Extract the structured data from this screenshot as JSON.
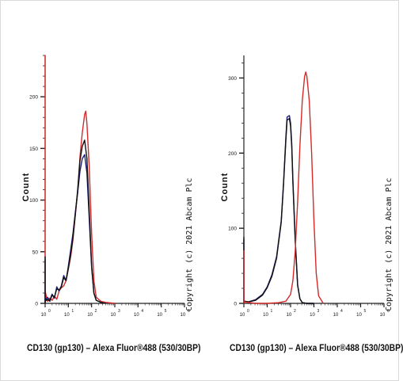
{
  "panels": [
    {
      "ylabel": "Count",
      "xlabel": "CD130 (gp130) – Alexa Fluor®488 (530/30BP)",
      "copyright": "Copyright (c) 2021 Abcam Plc",
      "x_ticks": [
        "0",
        "1",
        "2",
        "3",
        "4",
        "5",
        "6"
      ],
      "y_ticks": [
        0,
        50,
        100,
        150,
        200
      ],
      "chart_data": {
        "type": "line",
        "xlabel": "CD130 (gp130) – Alexa Fluor®488 (530/30BP)",
        "ylabel": "Count",
        "x_scale": "log10",
        "xlim": [
          0,
          6
        ],
        "ylim": [
          0,
          240
        ],
        "series": [
          {
            "color": "#d42a2a",
            "x": [
              -0.15,
              -0.1,
              -0.07,
              -0.05,
              0,
              0.1,
              0.2,
              0.3,
              0.4,
              0.5,
              0.6,
              0.7,
              0.8,
              0.9,
              1.0,
              1.1,
              1.2,
              1.3,
              1.4,
              1.5,
              1.6,
              1.7,
              1.75,
              1.8,
              1.9,
              2.0,
              2.1,
              2.2,
              2.4,
              2.6,
              3.0
            ],
            "y": [
              0,
              240,
              160,
              60,
              12,
              2,
              5,
              3,
              7,
              4,
              12,
              15,
              17,
              22,
              33,
              45,
              62,
              85,
              108,
              142,
              165,
              183,
              186,
              174,
              132,
              68,
              22,
              6,
              2,
              1,
              0
            ]
          },
          {
            "color": "#1c1c7a",
            "x": [
              -0.15,
              -0.1,
              -0.07,
              -0.05,
              0,
              0.1,
              0.2,
              0.3,
              0.4,
              0.5,
              0.6,
              0.7,
              0.8,
              0.9,
              1.0,
              1.1,
              1.2,
              1.3,
              1.4,
              1.5,
              1.6,
              1.7,
              1.8,
              1.9,
              2.0,
              2.1,
              2.2,
              2.4,
              2.6
            ],
            "y": [
              0,
              42,
              18,
              6,
              3,
              6,
              3,
              9,
              5,
              16,
              12,
              17,
              27,
              22,
              36,
              52,
              68,
              88,
              107,
              128,
              140,
              144,
              126,
              82,
              35,
              10,
              3,
              1,
              0
            ]
          },
          {
            "color": "#111111",
            "x": [
              -0.15,
              -0.1,
              -0.07,
              -0.05,
              0,
              0.1,
              0.2,
              0.3,
              0.4,
              0.5,
              0.6,
              0.7,
              0.8,
              0.9,
              1.0,
              1.1,
              1.2,
              1.3,
              1.4,
              1.5,
              1.6,
              1.7,
              1.8,
              1.9,
              2.0,
              2.1,
              2.2,
              2.4,
              2.6
            ],
            "y": [
              0,
              45,
              15,
              5,
              2,
              4,
              2,
              8,
              6,
              14,
              13,
              16,
              25,
              22,
              34,
              48,
              64,
              86,
              110,
              138,
              152,
              158,
              140,
              90,
              36,
              10,
              3,
              1,
              0
            ]
          }
        ]
      }
    },
    {
      "ylabel": "Count",
      "xlabel": "CD130 (gp130) – Alexa Fluor®488 (530/30BP)",
      "copyright": "Copyright (c) 2021 Abcam Plc",
      "x_ticks": [
        "0",
        "1",
        "2",
        "3",
        "4",
        "5",
        "6"
      ],
      "y_ticks": [
        0,
        100,
        200,
        300
      ],
      "chart_data": {
        "type": "line",
        "xlabel": "CD130 (gp130) – Alexa Fluor®488 (530/30BP)",
        "ylabel": "Count",
        "x_scale": "log10",
        "xlim": [
          0,
          6
        ],
        "ylim": [
          0,
          330
        ],
        "series": [
          {
            "color": "#1c1c7a",
            "x": [
              -0.1,
              -0.08,
              -0.06,
              -0.03,
              0,
              0.2,
              0.5,
              0.8,
              1.0,
              1.2,
              1.4,
              1.6,
              1.7,
              1.8,
              1.85,
              1.95,
              2.0,
              2.05,
              2.1,
              2.2,
              2.3,
              2.4,
              2.5,
              2.7,
              3.0
            ],
            "y": [
              0,
              85,
              30,
              8,
              3,
              2,
              5,
              12,
              22,
              38,
              62,
              110,
              160,
              222,
              248,
              250,
              240,
              212,
              165,
              85,
              25,
              6,
              1,
              0,
              0
            ]
          },
          {
            "color": "#111111",
            "x": [
              -0.1,
              -0.08,
              -0.06,
              -0.03,
              0,
              0.2,
              0.5,
              0.8,
              1.0,
              1.2,
              1.4,
              1.6,
              1.7,
              1.8,
              1.85,
              1.95,
              2.0,
              2.05,
              2.1,
              2.2,
              2.3,
              2.4,
              2.5,
              2.7,
              3.0
            ],
            "y": [
              0,
              88,
              32,
              9,
              3,
              2,
              4,
              11,
              21,
              36,
              60,
              108,
              158,
              218,
              244,
              246,
              236,
              208,
              162,
              82,
              24,
              6,
              1,
              0,
              0
            ]
          },
          {
            "color": "#d42a2a",
            "x": [
              -0.1,
              -0.08,
              -0.06,
              -0.03,
              0,
              0.5,
              1.0,
              1.5,
              1.8,
              2.0,
              2.1,
              2.2,
              2.3,
              2.4,
              2.5,
              2.6,
              2.65,
              2.7,
              2.8,
              2.9,
              3.0,
              3.1,
              3.2,
              3.4
            ],
            "y": [
              0,
              70,
              25,
              6,
              2,
              0,
              0,
              1,
              3,
              12,
              30,
              70,
              135,
              210,
              270,
              302,
              308,
              302,
              270,
              200,
              110,
              40,
              10,
              0
            ]
          }
        ]
      }
    }
  ]
}
